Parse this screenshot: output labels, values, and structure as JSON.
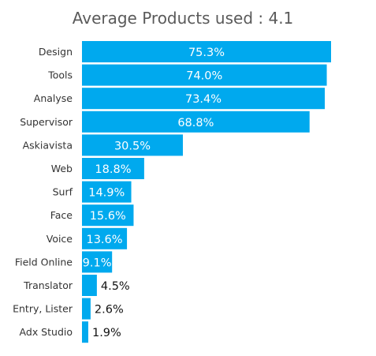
{
  "chart_data": {
    "type": "bar",
    "orientation": "horizontal",
    "title": "Average Products used : 4.1",
    "xlabel": "",
    "ylabel": "",
    "xlim": [
      0,
      80
    ],
    "grid": false,
    "legend": "none",
    "bar_color": "#00a9ee",
    "categories": [
      "Design",
      "Tools",
      "Analyse",
      "Supervisor",
      "Askiavista",
      "Web",
      "Surf",
      "Face",
      "Voice",
      "Field Online",
      "Translator",
      "Entry, Lister",
      "Adx Studio"
    ],
    "values": [
      75.3,
      74.0,
      73.4,
      68.8,
      30.5,
      18.8,
      14.9,
      15.6,
      13.6,
      9.1,
      4.5,
      2.6,
      1.9
    ],
    "value_labels": [
      "75.3%",
      "74.0%",
      "73.4%",
      "68.8%",
      "30.5%",
      "18.8%",
      "14.9%",
      "15.6%",
      "13.6%",
      "9.1%",
      "4.5%",
      "2.6%",
      "1.9%"
    ]
  }
}
